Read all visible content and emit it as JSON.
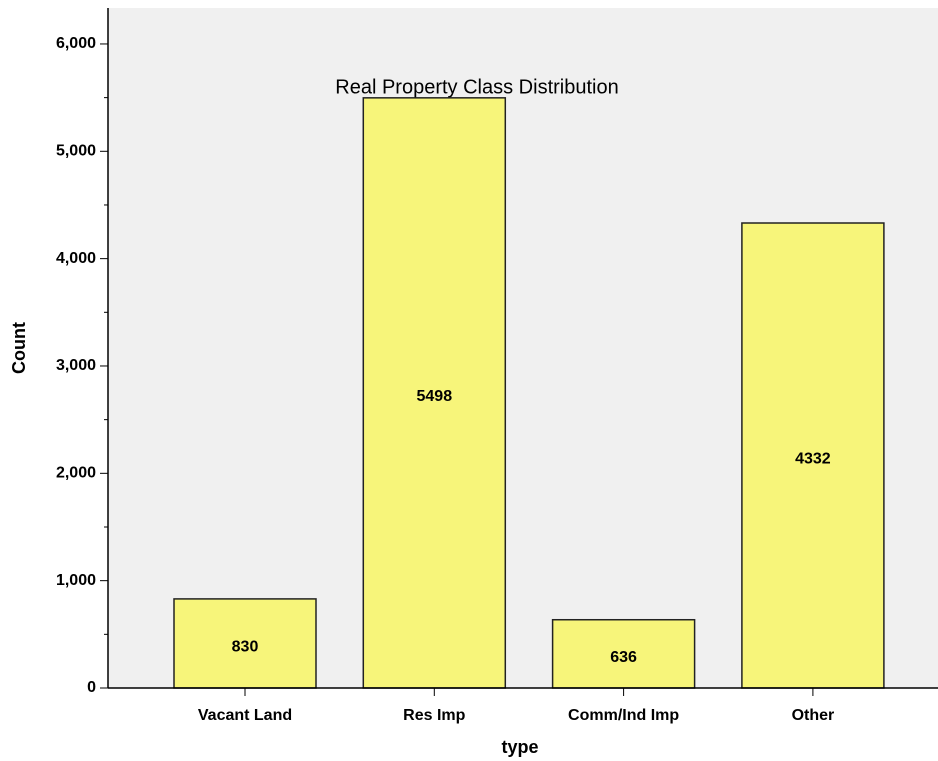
{
  "chart_data": {
    "type": "bar",
    "title": "Real Property Class Distribution",
    "x_label": "type",
    "y_label": "Count",
    "categories": [
      "Vacant Land",
      "Res Imp",
      "Comm/Ind Imp",
      "Other"
    ],
    "values": [
      830,
      5498,
      636,
      4332
    ],
    "color": "#f7f57a",
    "ylim": [
      0,
      6335
    ],
    "yticks": [
      0,
      {
        "value": 1000,
        "label": "1,000"
      },
      {
        "value": 2000,
        "label": "2,000"
      },
      {
        "value": 3000,
        "label": "3,000"
      },
      {
        "value": 4000,
        "label": "4,000"
      },
      {
        "value": 5000,
        "label": "5,000"
      },
      {
        "value": 6000,
        "label": "6,000"
      }
    ],
    "yminorticks": [
      500,
      1500,
      2500,
      3500,
      4500,
      5500
    ]
  }
}
